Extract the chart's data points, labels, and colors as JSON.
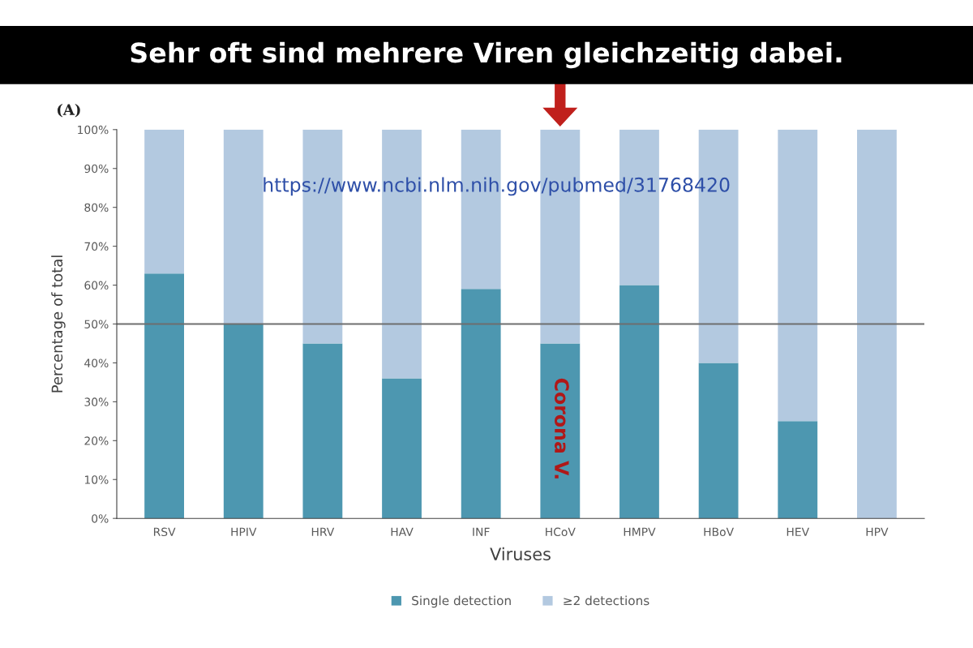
{
  "chart_data": {
    "type": "bar",
    "stacked": true,
    "title": "Sehr oft sind mehrere Viren gleichzeitig dabei.",
    "xlabel": "Viruses",
    "ylabel": "Percentage of total",
    "categories": [
      "RSV",
      "HPIV",
      "HRV",
      "HAV",
      "INF",
      "HCoV",
      "HMPV",
      "HBoV",
      "HEV",
      "HPV"
    ],
    "series": [
      {
        "name": "Single detection",
        "color": "#4d97b0",
        "values": [
          63,
          50,
          45,
          36,
          59,
          45,
          60,
          40,
          25,
          0
        ]
      },
      {
        "name": "≥2 detections",
        "color": "#b3c9e0",
        "values": [
          37,
          50,
          55,
          64,
          41,
          55,
          40,
          60,
          75,
          100
        ]
      }
    ],
    "ylim": [
      0,
      100
    ],
    "yticks": [
      {
        "value": 0,
        "label": "0%"
      },
      {
        "value": 10,
        "label": "10%"
      },
      {
        "value": 20,
        "label": "20%"
      },
      {
        "value": 30,
        "label": "30%"
      },
      {
        "value": 40,
        "label": "40%"
      },
      {
        "value": 50,
        "label": "50%"
      },
      {
        "value": 60,
        "label": "60%"
      },
      {
        "value": 70,
        "label": "70%"
      },
      {
        "value": 80,
        "label": "80%"
      },
      {
        "value": 90,
        "label": "90%"
      },
      {
        "value": 100,
        "label": "100%"
      }
    ],
    "ref_lines": [
      {
        "axis": "y",
        "value": 50,
        "color": "#6e6e6e"
      }
    ],
    "legend": "bottom",
    "annotations": [
      "(A)",
      "https://www.ncbi.nlm.nih.gov/pubmed/31768420",
      "Corona V."
    ]
  }
}
